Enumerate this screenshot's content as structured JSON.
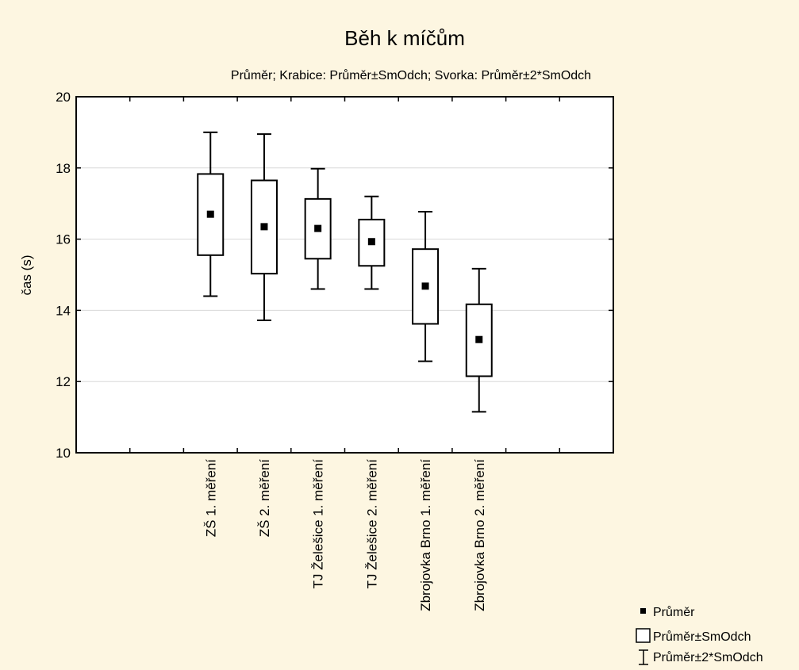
{
  "chart_data": {
    "type": "box",
    "title": "Běh k míčům",
    "subtitle": "Průměr; Krabice: Průměr±SmOdch; Svorka: Průměr±2*SmOdch",
    "xlabel": "",
    "ylabel": "čas (s)",
    "ylim": [
      10,
      20
    ],
    "yticks": [
      10,
      12,
      14,
      16,
      18,
      20
    ],
    "grid": true,
    "legend_position": "bottom-right",
    "categories": [
      "ZŠ 1. měření",
      "ZŠ 2. měření",
      "TJ Želešice 1. měření",
      "TJ Želešice 2. měření",
      "Zbrojovka Brno 1. měření",
      "Zbrojovka Brno 2. měření"
    ],
    "series": [
      {
        "name": "Průměr",
        "values": [
          16.7,
          16.35,
          16.3,
          15.93,
          14.68,
          13.18
        ]
      },
      {
        "name": "Průměr±SmOdch",
        "low": [
          15.55,
          15.03,
          15.45,
          15.25,
          13.62,
          12.15
        ],
        "high": [
          17.83,
          17.65,
          17.13,
          16.55,
          15.72,
          14.17
        ]
      },
      {
        "name": "Průměr±2*SmOdch",
        "low": [
          14.4,
          13.72,
          14.6,
          14.6,
          12.57,
          11.15
        ],
        "high": [
          19.0,
          18.95,
          17.98,
          17.2,
          16.77,
          15.17
        ]
      }
    ],
    "colors": {
      "background": "#fdf6e1",
      "plot": "#ffffff",
      "ink": "#000000",
      "grid": "#d8d8d8"
    }
  }
}
